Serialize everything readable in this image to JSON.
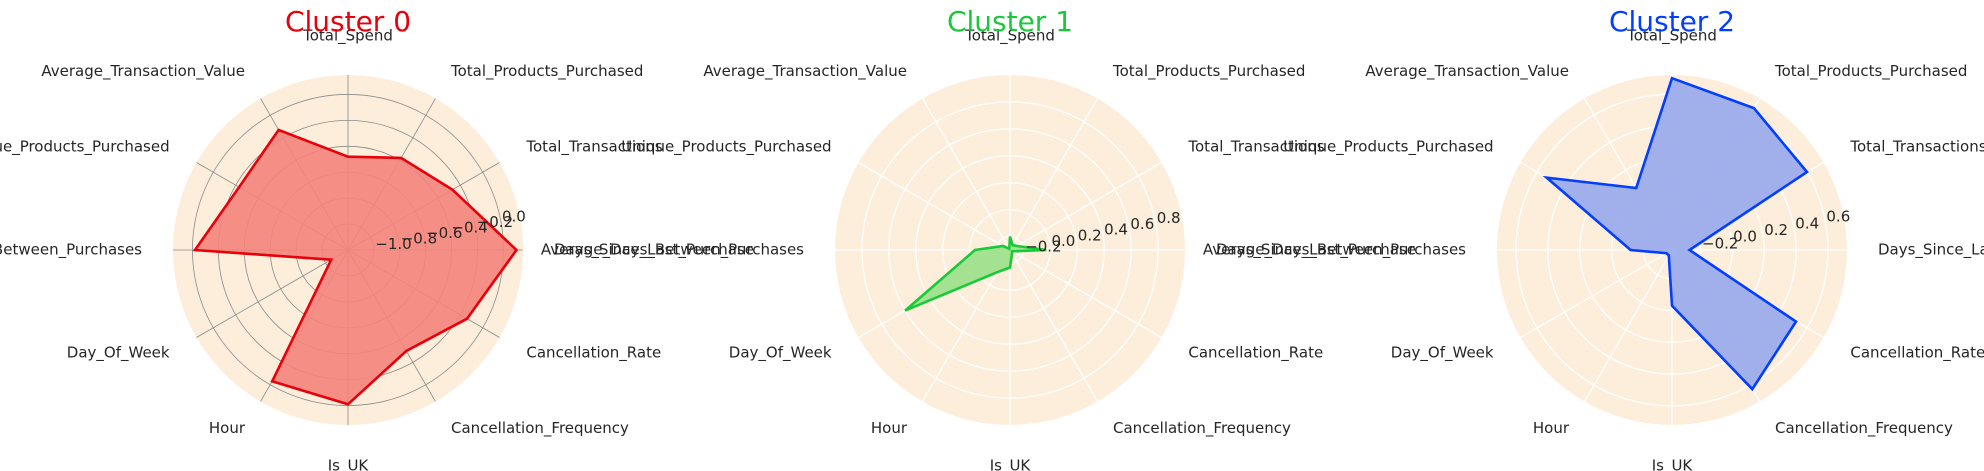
{
  "chart_data": [
    {
      "type": "radar",
      "title": "Cluster 0",
      "color": "#e8000b",
      "fill": "#f4847c",
      "grid": "dark",
      "background": "#fdeedb",
      "categories": [
        "Total_Spend",
        "Total_Products_Purchased",
        "Total_Transactions",
        "Days_Since_Last_Purchase",
        "Cancellation_Rate",
        "Cancellation_Frequency",
        "Is_UK",
        "Hour",
        "Day_Of_Week",
        "Average_Days_Between_Purchases",
        "Unique_Products_Purchased",
        "Average_Transaction_Value"
      ],
      "values": [
        -0.48,
        -0.38,
        -0.27,
        0.1,
        -0.14,
        -0.3,
        -0.01,
        -0.03,
        -1.05,
        -0.02,
        -0.23,
        -0.13
      ],
      "rlim": [
        -1.2,
        0.15
      ],
      "rticks": [
        -1.0,
        -0.8,
        -0.6,
        -0.4,
        -0.2,
        0.0
      ],
      "rtick_labels": [
        "−1.0",
        "−0.8",
        "−0.6",
        "−0.4",
        "−0.2",
        "0.0"
      ]
    },
    {
      "type": "radar",
      "title": "Cluster 1",
      "color": "#1ac938",
      "fill": "#9ae08a",
      "grid": "white",
      "background": "#fdeedb",
      "categories": [
        "Total_Spend",
        "Total_Products_Purchased",
        "Total_Transactions",
        "Days_Since_Last_Purchase",
        "Cancellation_Rate",
        "Cancellation_Frequency",
        "Is_UK",
        "Hour",
        "Day_Of_Week",
        "Average_Days_Between_Purchases",
        "Unique_Products_Purchased",
        "Average_Transaction_Value"
      ],
      "values": [
        -0.2,
        -0.26,
        -0.24,
        -0.03,
        -0.28,
        -0.27,
        -0.17,
        -0.11,
        0.6,
        -0.04,
        -0.24,
        -0.29
      ],
      "rlim": [
        -0.3,
        1.0
      ],
      "rticks": [
        -0.2,
        0.0,
        0.2,
        0.4,
        0.6,
        0.8
      ],
      "rtick_labels": [
        "−0.2",
        "0.0",
        "0.2",
        "0.4",
        "0.6",
        "0.8"
      ]
    },
    {
      "type": "radar",
      "title": "Cluster 2",
      "color": "#023eff",
      "fill": "#97a8ec",
      "grid": "white",
      "background": "#fdeedb",
      "categories": [
        "Total_Spend",
        "Total_Products_Purchased",
        "Total_Transactions",
        "Days_Since_Last_Purchase",
        "Cancellation_Rate",
        "Cancellation_Frequency",
        "Is_UK",
        "Hour",
        "Day_Of_Week",
        "Average_Days_Between_Purchases",
        "Unique_Products_Purchased",
        "Average_Transaction_Value"
      ],
      "values": [
        0.7,
        0.65,
        0.6,
        -0.27,
        0.52,
        0.63,
        -0.03,
        -0.34,
        -0.34,
        -0.12,
        0.53,
        0.07
      ],
      "rlim": [
        -0.38,
        0.72
      ],
      "rticks": [
        -0.2,
        0.0,
        0.2,
        0.4,
        0.6
      ],
      "rtick_labels": [
        "−0.2",
        "0.0",
        "0.2",
        "0.4",
        "0.6"
      ]
    }
  ]
}
